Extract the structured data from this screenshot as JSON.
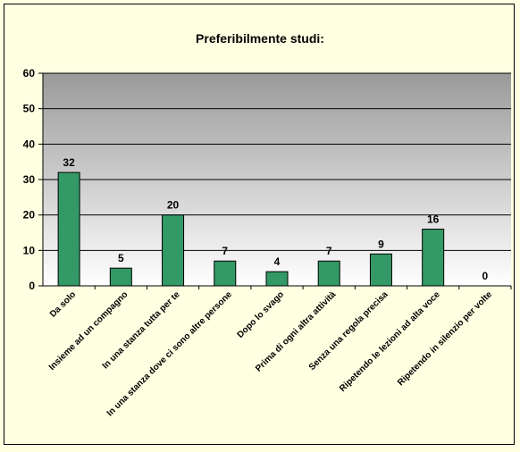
{
  "chart_data": {
    "type": "bar",
    "title": "Preferibilmente studi:",
    "categories": [
      "Da solo",
      "Insieme ad un compagno",
      "In una stanza tutta per te",
      "In una stanza dove ci sono altre persone",
      "Dopo lo svago",
      "Prima di ogni altra attività",
      "Senza una regola precisa",
      "Ripetendo le lezioni ad alta voce",
      "Ripetendo in silenzio per volte"
    ],
    "values": [
      32,
      5,
      20,
      7,
      4,
      7,
      9,
      16,
      0
    ],
    "ylim": [
      0,
      60
    ],
    "yticks": [
      "0",
      "10",
      "20",
      "30",
      "40",
      "50",
      "60"
    ],
    "xlabel": "",
    "ylabel": "",
    "grid": true,
    "legend": "none",
    "colors": {
      "bar": "#339966",
      "background": "#ffffe1",
      "plot_gradient_top": "#9a9a9a",
      "plot_gradient_bottom": "#ffffff"
    }
  }
}
